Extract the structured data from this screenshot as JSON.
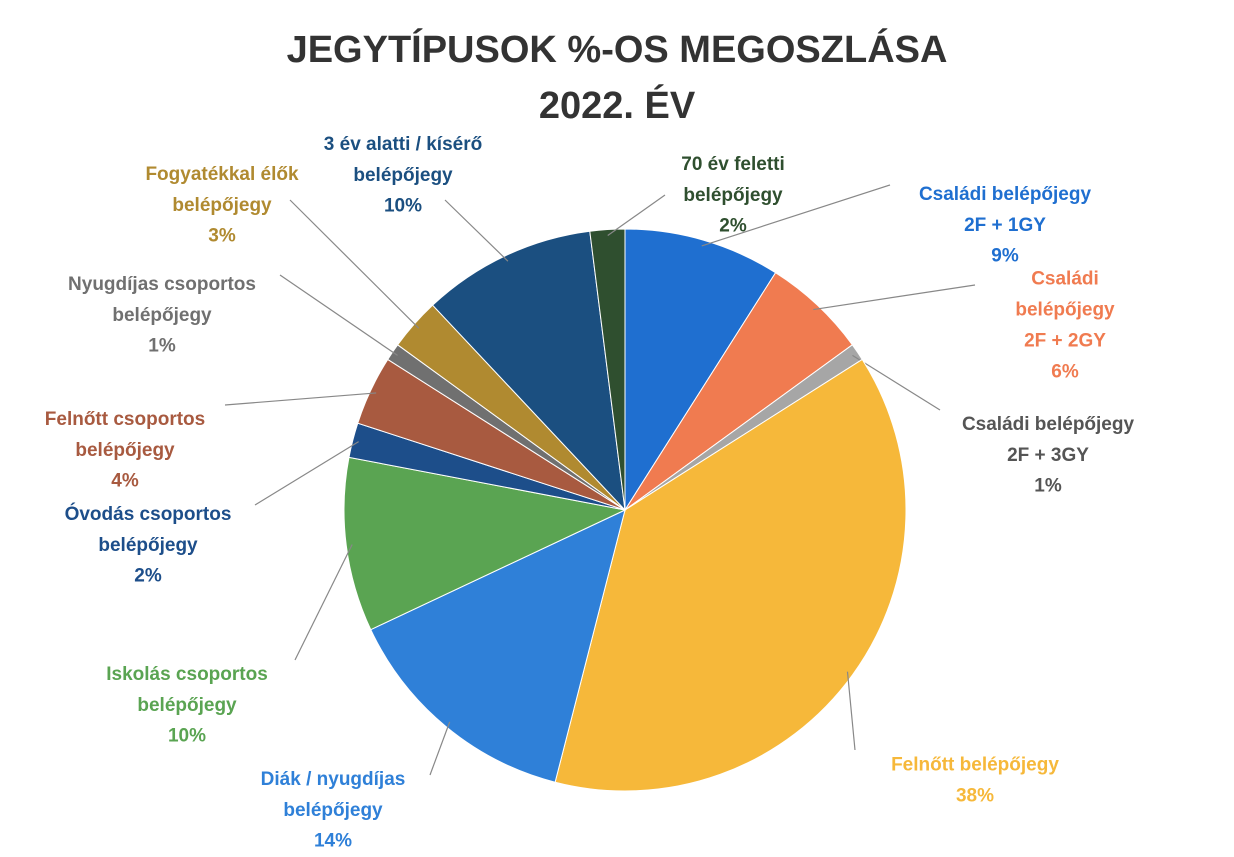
{
  "chart_data": {
    "type": "pie",
    "title": "JEGYTÍPUSOK %-OS MEGOSZLÁSA\n2022. ÉV",
    "categories": [
      "Családi belépőjegy\n2F + 1GY",
      "Családi belépőjegy\n2F + 2GY",
      "Családi belépőjegy\n2F + 3GY",
      "Felnőtt belépőjegy",
      "Diák / nyugdíjas\nbelépőjegy",
      "Iskolás csoportos\nbelépőjegy",
      "Óvodás csoportos\nbelépőjegy",
      "Felnőtt csoportos\nbelépőjegy",
      "Nyugdíjas csoportos\nbelépőjegy",
      "Fogyatékkal élők\nbelépőjegy",
      "3 év alatti / kísérő\nbelépőjegy",
      "70 év feletti\nbelépőjegy"
    ],
    "values": [
      9,
      6,
      1,
      38,
      14,
      10,
      2,
      4,
      1,
      3,
      10,
      2
    ],
    "value_labels": [
      "9%",
      "6%",
      "1%",
      "38%",
      "14%",
      "10%",
      "2%",
      "4%",
      "1%",
      "3%",
      "10%",
      "2%"
    ],
    "colors": [
      "#1f6fd0",
      "#f07b50",
      "#a6a6a6",
      "#f6b83a",
      "#2f80d8",
      "#5aa452",
      "#1d4e8a",
      "#a85a40",
      "#707070",
      "#b08a30",
      "#1b4f80",
      "#2f4f2f"
    ]
  }
}
